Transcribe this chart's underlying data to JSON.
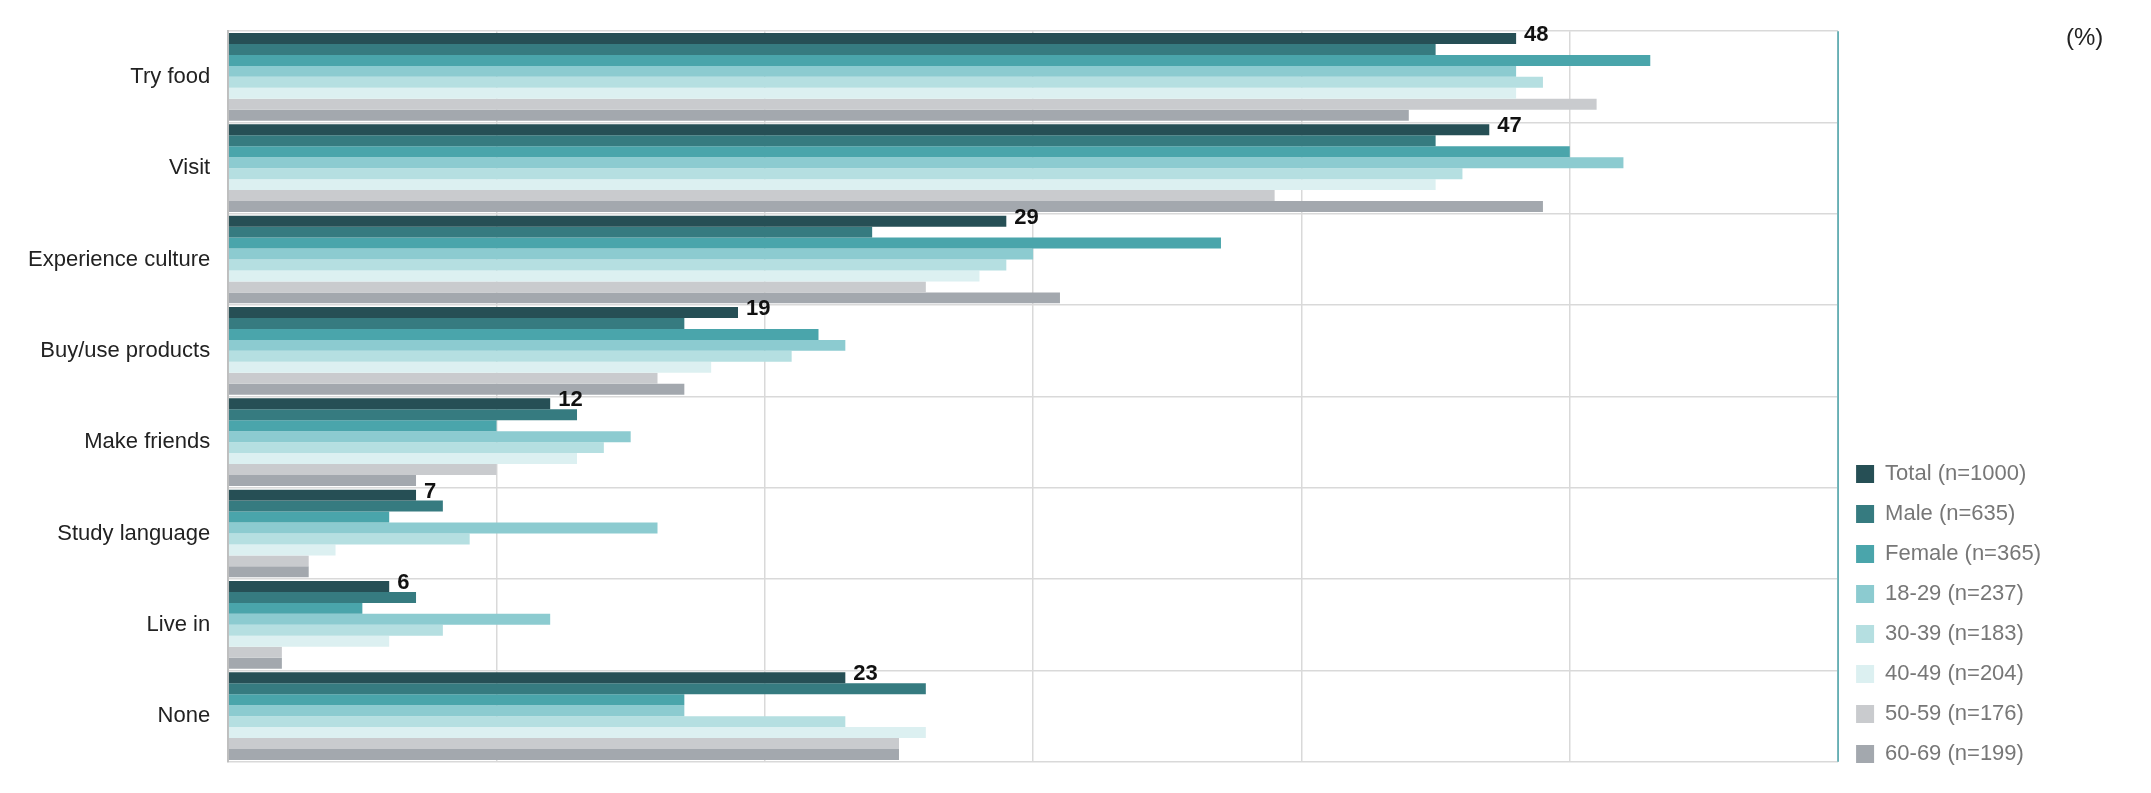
{
  "chart_data": {
    "type": "bar",
    "orientation": "horizontal",
    "categories": [
      "Try food",
      "Visit",
      "Experience culture",
      "Buy/use products",
      "Make friends",
      "Study language",
      "Live in",
      "None"
    ],
    "series": [
      {
        "name": "Total (n=1000)",
        "color": "#264f55",
        "values": [
          48,
          47,
          29,
          19,
          12,
          7,
          6,
          23
        ],
        "value_labels": [
          "48",
          "47",
          "29",
          "19",
          "12",
          "7",
          "6",
          "23"
        ]
      },
      {
        "name": "Male (n=635)",
        "color": "#367b80",
        "values": [
          45,
          45,
          24,
          17,
          13,
          8,
          7,
          26
        ]
      },
      {
        "name": "Female (n=365)",
        "color": "#4aa5ab",
        "values": [
          53,
          50,
          37,
          22,
          10,
          6,
          5,
          17
        ]
      },
      {
        "name": "18-29 (n=237)",
        "color": "#8ccbd0",
        "values": [
          48,
          52,
          30,
          23,
          15,
          16,
          12,
          17
        ]
      },
      {
        "name": "30-39 (n=183)",
        "color": "#b5dfe1",
        "values": [
          49,
          46,
          29,
          21,
          14,
          9,
          8,
          23
        ]
      },
      {
        "name": "40-49 (n=204)",
        "color": "#dcf0f1",
        "values": [
          48,
          45,
          28,
          18,
          13,
          4,
          6,
          26
        ]
      },
      {
        "name": "50-59 (n=176)",
        "color": "#c9cbce",
        "values": [
          51,
          39,
          26,
          16,
          10,
          3,
          2,
          25
        ]
      },
      {
        "name": "60-69 (n=199)",
        "color": "#a3a8ae",
        "values": [
          44,
          49,
          31,
          17,
          7,
          3,
          2,
          25
        ]
      }
    ],
    "xlim": [
      0,
      60
    ],
    "xticks": [
      {
        "value": 0,
        "label": null
      },
      {
        "value": 10,
        "label": null
      },
      {
        "value": 20,
        "label": null
      },
      {
        "value": 30,
        "label": null
      },
      {
        "value": 40,
        "label": null
      },
      {
        "value": 50,
        "label": null
      },
      {
        "value": 60,
        "label": null
      }
    ],
    "tick_labels": "y",
    "grid": true,
    "legend": "right",
    "annotations": [
      "(%)"
    ]
  }
}
